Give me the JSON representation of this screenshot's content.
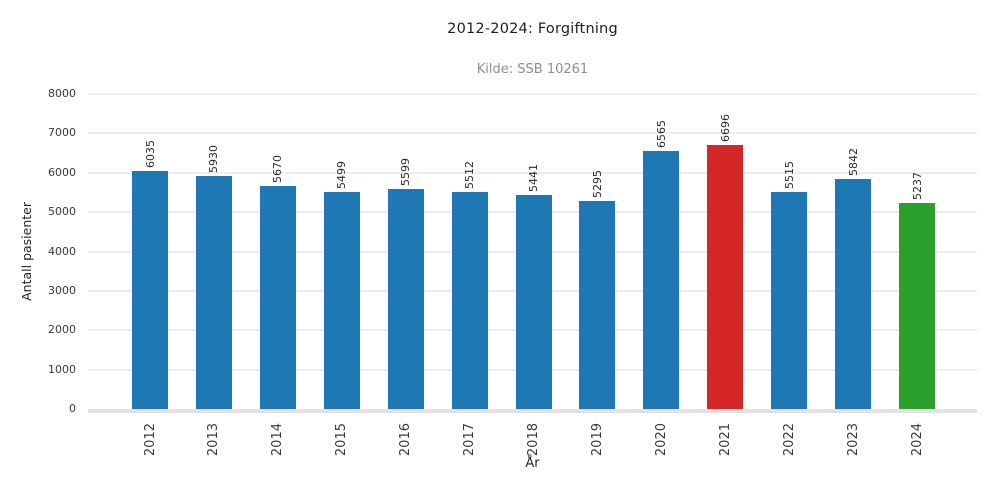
{
  "chart_data": {
    "type": "bar",
    "title": "2012-2024: Forgiftning",
    "subtitle": "Kilde: SSB 10261",
    "xlabel": "År",
    "ylabel": "Antall pasienter",
    "categories": [
      "2012",
      "2013",
      "2014",
      "2015",
      "2016",
      "2017",
      "2018",
      "2019",
      "2020",
      "2021",
      "2022",
      "2023",
      "2024"
    ],
    "values": [
      6035,
      5930,
      5670,
      5499,
      5599,
      5512,
      5441,
      5295,
      6565,
      6696,
      5515,
      5842,
      5237
    ],
    "bar_colors": [
      "#1f77b4",
      "#1f77b4",
      "#1f77b4",
      "#1f77b4",
      "#1f77b4",
      "#1f77b4",
      "#1f77b4",
      "#1f77b4",
      "#1f77b4",
      "#d62728",
      "#1f77b4",
      "#1f77b4",
      "#2ca02c"
    ],
    "value_labels_rotation": 90,
    "xtick_rotation": 90,
    "ylim": [
      0,
      8000
    ],
    "yticks": [
      0,
      1000,
      2000,
      3000,
      4000,
      5000,
      6000,
      7000,
      8000
    ],
    "grid": "horizontal",
    "legend": "none",
    "colors": {
      "bar_default": "#1f77b4",
      "bar_highlight_2021": "#d62728",
      "bar_highlight_2024": "#2ca02c",
      "gridline": "#ededed",
      "axis_line": "#e2e2e2",
      "title_text": "#1f1f1f",
      "subtitle_text": "#8f8f8f",
      "tick_text": "#3a3a3a"
    }
  }
}
